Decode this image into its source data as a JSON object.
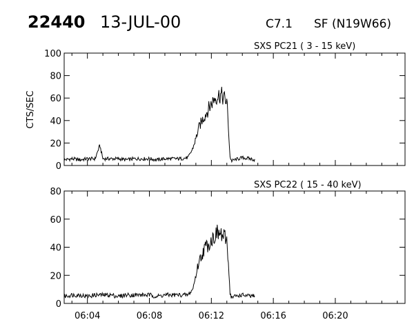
{
  "header": {
    "event_number": "22440",
    "date": "13-JUL-00",
    "flare_class": "C7.1",
    "flare_location": "SF (N19W66)"
  },
  "chart_data": [
    {
      "type": "line",
      "panel_label": "SXS PC21  (  3 - 15 keV)",
      "ylabel": "CTS/SEC",
      "ylim": [
        0,
        100
      ],
      "yticks": [
        0,
        20,
        40,
        60,
        80,
        100
      ],
      "xlim": [
        362.5,
        384.5
      ],
      "x_tick_minutes": [
        364,
        368,
        372,
        376,
        380
      ],
      "x_tick_labels": [
        "06:04",
        "06:08",
        "06:12",
        "06:16",
        "06:20"
      ],
      "x_unit": "minutes after 00:00 UT",
      "x": [
        362.5,
        363.0,
        363.5,
        364.0,
        364.5,
        364.8,
        365.0,
        365.5,
        366.0,
        366.5,
        367.0,
        367.5,
        368.0,
        368.5,
        369.0,
        369.5,
        370.0,
        370.5,
        370.8,
        371.0,
        371.2,
        371.4,
        371.6,
        371.8,
        372.0,
        372.2,
        372.4,
        372.6,
        372.8,
        373.0,
        373.1,
        373.2,
        373.3,
        373.5,
        374.0,
        374.5,
        374.8
      ],
      "values": [
        5,
        6,
        5,
        6,
        6,
        18,
        6,
        6,
        6,
        5,
        6,
        6,
        6,
        5,
        6,
        6,
        6,
        7,
        15,
        24,
        34,
        40,
        45,
        50,
        55,
        60,
        62,
        63,
        60,
        57,
        35,
        8,
        4,
        5,
        7,
        6,
        5
      ]
    },
    {
      "type": "line",
      "panel_label": "SXS PC22  ( 15 - 40 keV)",
      "ylabel": "",
      "ylim": [
        0,
        80
      ],
      "yticks": [
        0,
        20,
        40,
        60,
        80
      ],
      "xlim": [
        362.5,
        384.5
      ],
      "x_tick_minutes": [
        364,
        368,
        372,
        376,
        380
      ],
      "x_tick_labels": [
        "06:04",
        "06:08",
        "06:12",
        "06:16",
        "06:20"
      ],
      "x_unit": "minutes after 00:00 UT",
      "x": [
        362.5,
        363.0,
        363.5,
        364.0,
        364.5,
        365.0,
        365.5,
        366.0,
        366.5,
        367.0,
        367.5,
        368.0,
        368.5,
        369.0,
        369.5,
        370.0,
        370.5,
        370.8,
        371.0,
        371.2,
        371.4,
        371.6,
        371.8,
        372.0,
        372.2,
        372.4,
        372.6,
        372.8,
        373.0,
        373.1,
        373.2,
        373.3,
        373.5,
        374.0,
        374.5,
        374.8
      ],
      "values": [
        5,
        6,
        6,
        5,
        6,
        6,
        6,
        5,
        6,
        6,
        6,
        6,
        5,
        6,
        6,
        6,
        6,
        10,
        20,
        30,
        35,
        40,
        42,
        45,
        48,
        50,
        49,
        47,
        45,
        30,
        8,
        4,
        5,
        6,
        5,
        5
      ]
    }
  ]
}
